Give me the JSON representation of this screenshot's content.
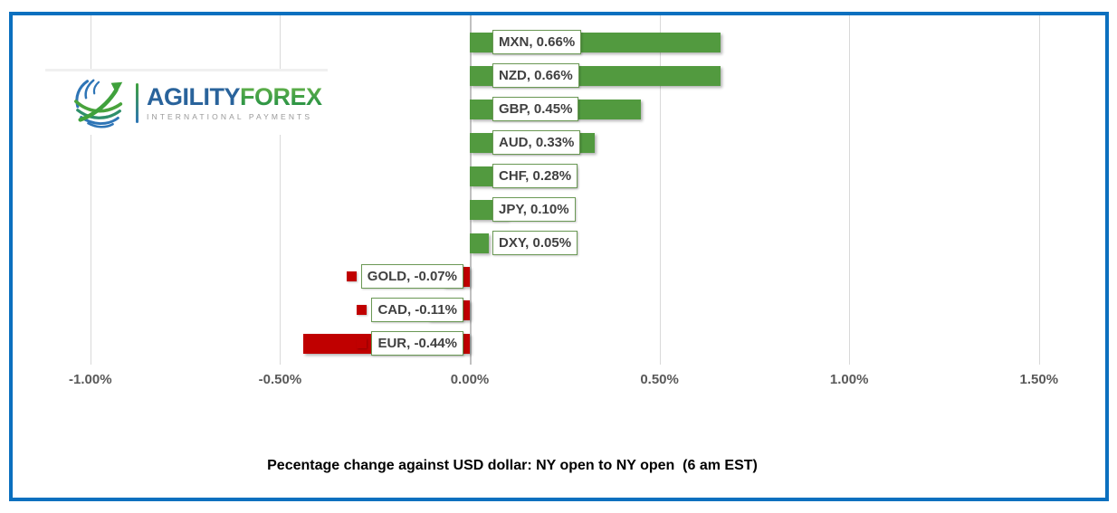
{
  "logo": {
    "brand_primary": "AGILITY",
    "brand_secondary": "FOREX",
    "tagline": "INTERNATIONAL PAYMENTS"
  },
  "chart_data": {
    "type": "bar",
    "orientation": "horizontal",
    "title": "Pecentage change against USD dollar: NY open to NY open  (6 am EST)",
    "categories": [
      "MXN",
      "NZD",
      "GBP",
      "AUD",
      "CHF",
      "JPY",
      "DXY",
      "GOLD",
      "CAD",
      "EUR"
    ],
    "values": [
      0.66,
      0.66,
      0.45,
      0.33,
      0.28,
      0.1,
      0.05,
      -0.07,
      -0.11,
      -0.44
    ],
    "data_labels": [
      "MXN, 0.66%",
      "NZD, 0.66%",
      "GBP, 0.45%",
      "AUD, 0.33%",
      "CHF, 0.28%",
      "JPY, 0.10%",
      "DXY, 0.05%",
      "GOLD, -0.07%",
      "CAD, -0.11%",
      "EUR, -0.44%"
    ],
    "x_ticks": [
      {
        "label": "-1.00%",
        "value": -1.0
      },
      {
        "label": "-0.50%",
        "value": -0.5
      },
      {
        "label": "0.00%",
        "value": 0.0
      },
      {
        "label": "0.50%",
        "value": 0.5
      },
      {
        "label": "1.00%",
        "value": 1.0
      },
      {
        "label": "1.50%",
        "value": 1.5
      }
    ],
    "xlim": [
      -1.2,
      1.7
    ],
    "grid": true,
    "legend": false,
    "unit": "percent",
    "colors": {
      "positive_bar": "#529a3f",
      "negative_bar": "#c00000",
      "label_border": "#6b9955",
      "label_text": "#404040",
      "tick_text": "#595959",
      "gridline": "#d9d9d9",
      "zero_line": "#c0c0c0",
      "frame_border": "#0b70bf"
    }
  }
}
